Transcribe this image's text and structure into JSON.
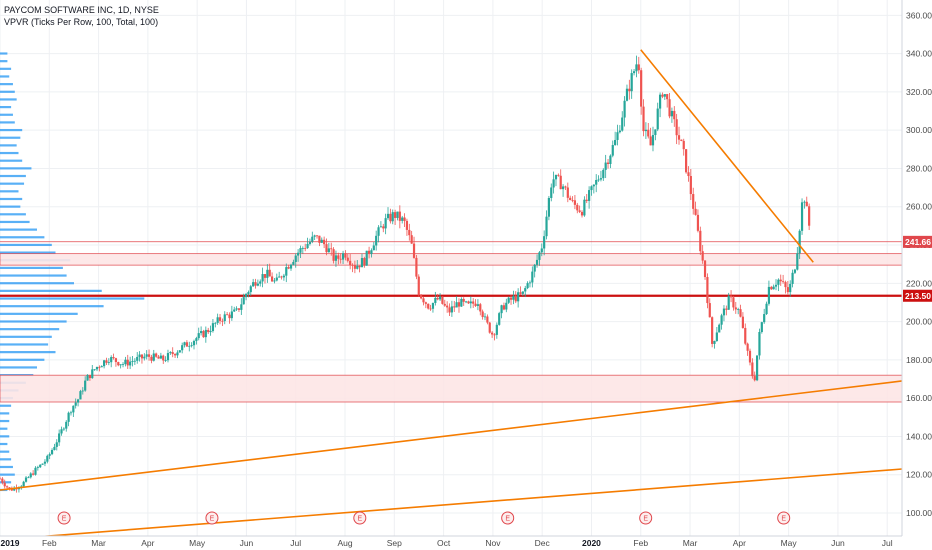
{
  "chart_data": {
    "type": "candlestick",
    "title": "PAYCOM SOFTWARE INC, 1D, NYSE",
    "indicator": "VPVR (Ticks Per Row, 100, Total, 100)",
    "ylim": [
      88,
      368
    ],
    "y_ticks": [
      100,
      120,
      140,
      160,
      180,
      200,
      220,
      240,
      260,
      280,
      300,
      320,
      340,
      360
    ],
    "x_ticks": [
      "2019",
      "Feb",
      "Mar",
      "Apr",
      "May",
      "Jun",
      "Jul",
      "Aug",
      "Sep",
      "Oct",
      "Nov",
      "Dec",
      "2020",
      "Feb",
      "Mar",
      "Apr",
      "May",
      "Jun",
      "Jul"
    ],
    "x_range_months": [
      0,
      18.3
    ],
    "price_labels": [
      {
        "value": 241.66,
        "label": "241.66",
        "color": "#e0474c"
      },
      {
        "value": 213.5,
        "label": "213.50",
        "color": "#cc1010"
      }
    ],
    "zones": [
      {
        "from": 229.5,
        "to": 235.5
      },
      {
        "from": 158.0,
        "to": 172.0
      }
    ],
    "horizontal_lines": [
      {
        "value": 241.7,
        "style": "thin"
      },
      {
        "value": 213.5,
        "style": "thick"
      }
    ],
    "trendlines": [
      {
        "start": [
          0,
          112
        ],
        "end": [
          18.3,
          169
        ]
      },
      {
        "start": [
          0,
          86
        ],
        "end": [
          18.3,
          123
        ]
      },
      {
        "start": [
          13.0,
          342
        ],
        "end": [
          16.5,
          231
        ]
      }
    ],
    "earnings_markers": [
      1.3,
      4.3,
      7.3,
      10.3,
      13.1,
      15.9
    ],
    "price_path": [
      [
        0.0,
        118
      ],
      [
        0.2,
        112
      ],
      [
        0.45,
        115
      ],
      [
        0.7,
        122
      ],
      [
        0.95,
        128
      ],
      [
        1.2,
        140
      ],
      [
        1.45,
        155
      ],
      [
        1.6,
        160
      ],
      [
        1.75,
        170
      ],
      [
        1.95,
        176
      ],
      [
        2.2,
        181
      ],
      [
        2.5,
        178
      ],
      [
        2.75,
        180
      ],
      [
        3.0,
        182
      ],
      [
        3.3,
        180
      ],
      [
        3.6,
        185
      ],
      [
        3.9,
        190
      ],
      [
        4.2,
        195
      ],
      [
        4.5,
        202
      ],
      [
        4.8,
        205
      ],
      [
        5.0,
        215
      ],
      [
        5.2,
        222
      ],
      [
        5.4,
        225
      ],
      [
        5.6,
        220
      ],
      [
        5.8,
        228
      ],
      [
        6.0,
        235
      ],
      [
        6.2,
        240
      ],
      [
        6.4,
        244
      ],
      [
        6.6,
        240
      ],
      [
        6.8,
        232
      ],
      [
        7.0,
        236
      ],
      [
        7.2,
        229
      ],
      [
        7.4,
        232
      ],
      [
        7.6,
        243
      ],
      [
        7.8,
        252
      ],
      [
        8.0,
        256
      ],
      [
        8.2,
        252
      ],
      [
        8.35,
        240
      ],
      [
        8.5,
        215
      ],
      [
        8.7,
        208
      ],
      [
        8.9,
        212
      ],
      [
        9.1,
        205
      ],
      [
        9.3,
        210
      ],
      [
        9.5,
        208
      ],
      [
        9.7,
        211
      ],
      [
        9.85,
        200
      ],
      [
        10.0,
        193
      ],
      [
        10.2,
        208
      ],
      [
        10.4,
        212
      ],
      [
        10.6,
        214
      ],
      [
        10.8,
        225
      ],
      [
        11.0,
        240
      ],
      [
        11.2,
        275
      ],
      [
        11.4,
        272
      ],
      [
        11.6,
        262
      ],
      [
        11.8,
        258
      ],
      [
        12.0,
        268
      ],
      [
        12.2,
        278
      ],
      [
        12.5,
        295
      ],
      [
        12.75,
        322
      ],
      [
        12.95,
        338
      ],
      [
        13.05,
        300
      ],
      [
        13.2,
        292
      ],
      [
        13.45,
        322
      ],
      [
        13.65,
        305
      ],
      [
        13.85,
        290
      ],
      [
        14.0,
        270
      ],
      [
        14.1,
        255
      ],
      [
        14.3,
        225
      ],
      [
        14.45,
        188
      ],
      [
        14.6,
        200
      ],
      [
        14.8,
        212
      ],
      [
        15.0,
        205
      ],
      [
        15.15,
        185
      ],
      [
        15.3,
        168
      ],
      [
        15.4,
        192
      ],
      [
        15.6,
        218
      ],
      [
        15.8,
        222
      ],
      [
        16.0,
        215
      ],
      [
        16.15,
        232
      ],
      [
        16.3,
        268
      ],
      [
        16.45,
        245
      ]
    ],
    "volume_profile_rows": [
      [
        112,
        0.04
      ],
      [
        116,
        0.06
      ],
      [
        120,
        0.08
      ],
      [
        124,
        0.07
      ],
      [
        128,
        0.06
      ],
      [
        132,
        0.05
      ],
      [
        136,
        0.04
      ],
      [
        140,
        0.05
      ],
      [
        144,
        0.04
      ],
      [
        148,
        0.05
      ],
      [
        152,
        0.05
      ],
      [
        156,
        0.06
      ],
      [
        160,
        0.07
      ],
      [
        164,
        0.1
      ],
      [
        168,
        0.14
      ],
      [
        172,
        0.18
      ],
      [
        176,
        0.2
      ],
      [
        180,
        0.24
      ],
      [
        184,
        0.3
      ],
      [
        188,
        0.26
      ],
      [
        192,
        0.28
      ],
      [
        196,
        0.32
      ],
      [
        200,
        0.36
      ],
      [
        204,
        0.42
      ],
      [
        208,
        0.56
      ],
      [
        212,
        0.78
      ],
      [
        216,
        0.55
      ],
      [
        220,
        0.4
      ],
      [
        224,
        0.36
      ],
      [
        228,
        0.34
      ],
      [
        232,
        0.38
      ],
      [
        236,
        0.3
      ],
      [
        240,
        0.28
      ],
      [
        244,
        0.24
      ],
      [
        248,
        0.2
      ],
      [
        252,
        0.16
      ],
      [
        256,
        0.14
      ],
      [
        260,
        0.11
      ],
      [
        264,
        0.12
      ],
      [
        268,
        0.1
      ],
      [
        272,
        0.13
      ],
      [
        276,
        0.14
      ],
      [
        280,
        0.17
      ],
      [
        284,
        0.12
      ],
      [
        288,
        0.1
      ],
      [
        292,
        0.09
      ],
      [
        296,
        0.11
      ],
      [
        300,
        0.12
      ],
      [
        304,
        0.08
      ],
      [
        308,
        0.07
      ],
      [
        312,
        0.06
      ],
      [
        316,
        0.09
      ],
      [
        320,
        0.08
      ],
      [
        324,
        0.07
      ],
      [
        328,
        0.05
      ],
      [
        332,
        0.06
      ],
      [
        336,
        0.04
      ],
      [
        340,
        0.04
      ]
    ]
  },
  "colors": {
    "up": "#26a69a",
    "down": "#ef5350",
    "trendline": "#f57c00",
    "zone_fill": "#fde6e6",
    "zone_stroke": "#e0474c",
    "volume_profile": "#2196f3",
    "grid": "#eef0f3"
  }
}
